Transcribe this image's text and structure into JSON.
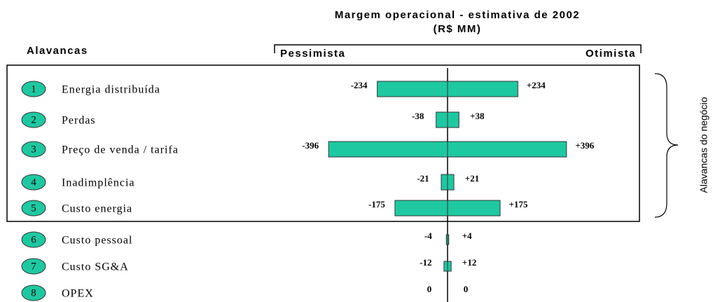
{
  "chart_data": {
    "type": "tornado",
    "title": "Margem operacional - estimativa de 2002",
    "subtitle": "(R$ MM)",
    "category_header": "Alavancas",
    "numbers": [
      "1",
      "2",
      "3",
      "4",
      "5",
      "6",
      "7",
      "8"
    ],
    "categories": [
      "Energia distribuída",
      "Perdas",
      "Preço de venda / tarifa",
      "Inadimplência",
      "Custo energia",
      "Custo pessoal",
      "Custo SG&A",
      "OPEX"
    ],
    "series": [
      {
        "name": "Pessimista",
        "color": "#1ec8a0",
        "values": [
          -234,
          -38,
          -396,
          -21,
          -175,
          -4,
          -12,
          0
        ]
      },
      {
        "name": "Otimista",
        "color": "#1ec8a0",
        "values": [
          234,
          38,
          396,
          21,
          175,
          4,
          12,
          0
        ],
        "value_labels": [
          "+234",
          "+38",
          "+396",
          "+21",
          "+175",
          "+4",
          "+12",
          "0"
        ]
      }
    ],
    "group_label": "Alavancas do negócio",
    "xlim": [
      -450,
      450
    ]
  }
}
